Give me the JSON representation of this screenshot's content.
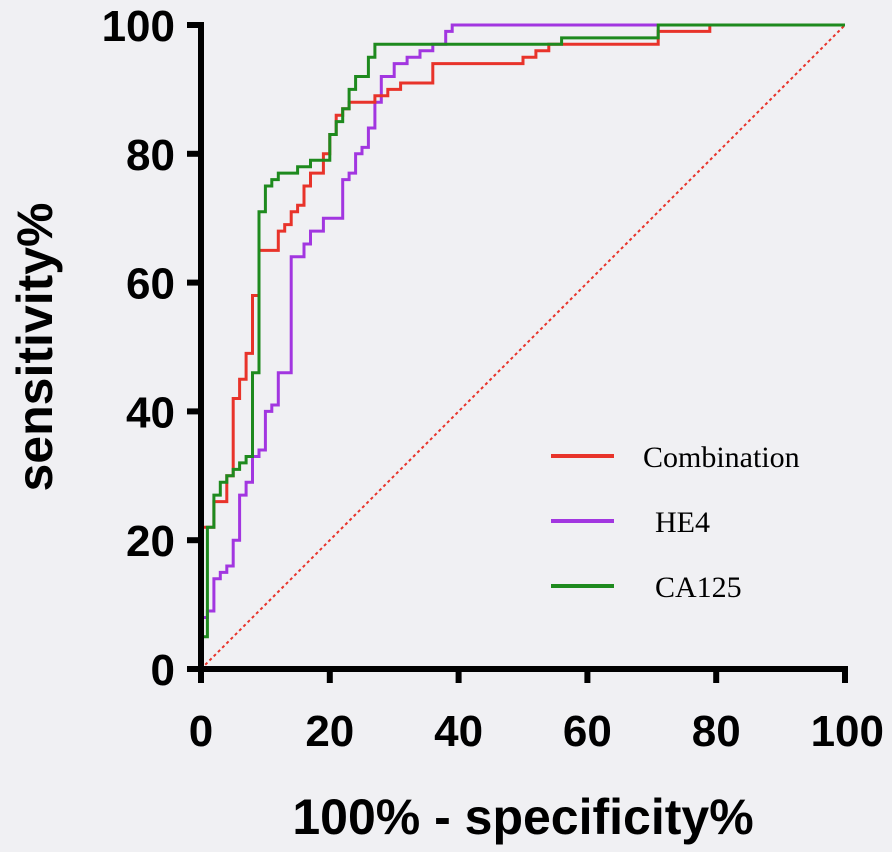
{
  "chart_data": {
    "type": "line",
    "title": "",
    "xlabel": "100% - specificity%",
    "ylabel": "sensitivity%",
    "xlim": [
      0,
      100
    ],
    "ylim": [
      0,
      100
    ],
    "xticks": [
      "0",
      "20",
      "40",
      "60",
      "80",
      "100"
    ],
    "yticks": [
      "0",
      "20",
      "40",
      "60",
      "80",
      "100"
    ],
    "grid": false,
    "legend_position": "lower-right",
    "reference_line": {
      "name": "reference",
      "color": "#e8332a",
      "x": [
        0,
        100
      ],
      "y": [
        0,
        100
      ]
    },
    "series": [
      {
        "name": "Combination",
        "color": "#e8332a",
        "x": [
          0,
          0,
          2,
          2,
          4,
          4,
          5,
          5,
          6,
          6,
          7,
          7,
          8,
          8,
          9,
          9,
          10,
          10,
          12,
          12,
          13,
          13,
          14,
          14,
          15,
          15,
          16,
          16,
          17,
          17,
          19,
          19,
          20,
          20,
          21,
          21,
          22,
          22,
          23,
          23,
          25,
          25,
          27,
          27,
          29,
          29,
          31,
          31,
          34,
          34,
          36,
          36,
          46,
          46,
          50,
          50,
          52,
          52,
          54,
          54,
          71,
          71,
          79,
          79,
          100
        ],
        "y": [
          0,
          22,
          22,
          26,
          26,
          30,
          30,
          42,
          42,
          45,
          45,
          49,
          49,
          58,
          58,
          65,
          65,
          65,
          65,
          68,
          68,
          69,
          69,
          71,
          71,
          72,
          72,
          75,
          75,
          77,
          77,
          80,
          80,
          83,
          83,
          86,
          86,
          87,
          87,
          88,
          88,
          88,
          88,
          89,
          89,
          90,
          90,
          91,
          91,
          91,
          91,
          94,
          94,
          94,
          94,
          95,
          95,
          96,
          96,
          97,
          97,
          99,
          99,
          100,
          100
        ]
      },
      {
        "name": "HE4",
        "color": "#a236e0",
        "x": [
          0,
          0,
          1,
          1,
          2,
          2,
          3,
          3,
          4,
          4,
          5,
          5,
          6,
          6,
          7,
          7,
          8,
          8,
          9,
          9,
          10,
          10,
          11,
          11,
          12,
          12,
          13,
          13,
          14,
          14,
          16,
          16,
          17,
          17,
          19,
          19,
          21,
          21,
          22,
          22,
          23,
          23,
          24,
          24,
          25,
          25,
          26,
          26,
          27,
          27,
          28,
          28,
          30,
          30,
          32,
          32,
          34,
          34,
          36,
          36,
          38,
          38,
          39,
          39,
          100
        ],
        "y": [
          0,
          8,
          8,
          9,
          9,
          14,
          14,
          15,
          15,
          16,
          16,
          20,
          20,
          27,
          27,
          29,
          29,
          33,
          33,
          34,
          34,
          40,
          40,
          41,
          41,
          46,
          46,
          46,
          46,
          64,
          64,
          66,
          66,
          68,
          68,
          70,
          70,
          70,
          70,
          76,
          76,
          77,
          77,
          80,
          80,
          81,
          81,
          84,
          84,
          88,
          88,
          92,
          92,
          94,
          94,
          95,
          95,
          96,
          96,
          97,
          97,
          99,
          99,
          100,
          100
        ]
      },
      {
        "name": "CA125",
        "color": "#1e8a1e",
        "x": [
          0,
          0,
          1,
          1,
          2,
          2,
          3,
          3,
          4,
          4,
          5,
          5,
          6,
          6,
          7,
          7,
          8,
          8,
          9,
          9,
          10,
          10,
          11,
          11,
          12,
          12,
          15,
          15,
          16,
          16,
          17,
          17,
          20,
          20,
          21,
          21,
          22,
          22,
          23,
          23,
          24,
          24,
          26,
          26,
          27,
          27,
          33,
          33,
          34,
          34,
          56,
          56,
          71,
          71,
          100
        ],
        "y": [
          0,
          5,
          5,
          22,
          22,
          27,
          27,
          29,
          29,
          30,
          30,
          31,
          31,
          32,
          32,
          33,
          33,
          46,
          46,
          71,
          71,
          75,
          75,
          76,
          76,
          77,
          77,
          78,
          78,
          78,
          78,
          79,
          79,
          83,
          83,
          85,
          85,
          87,
          87,
          90,
          90,
          92,
          92,
          95,
          95,
          97,
          97,
          97,
          97,
          97,
          97,
          98,
          98,
          100,
          100
        ]
      }
    ]
  }
}
